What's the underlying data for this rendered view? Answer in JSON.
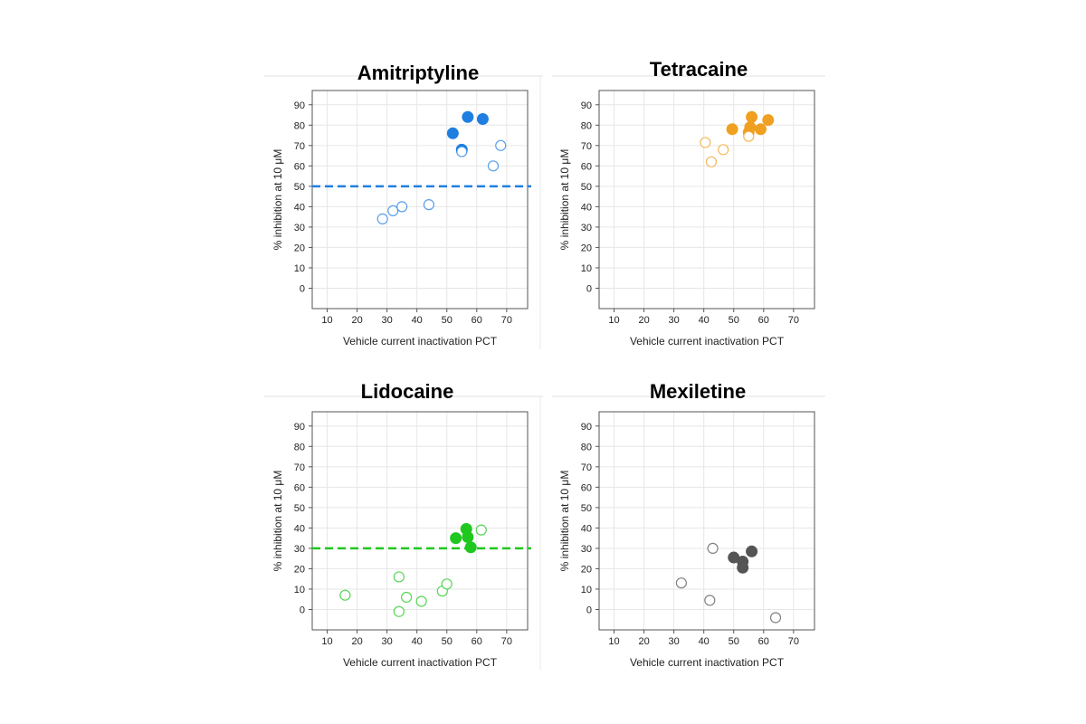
{
  "chart_data": [
    {
      "type": "scatter",
      "title": "Amitriptyline",
      "xlabel": "Vehicle current inactivation PCT",
      "ylabel": "% inhibition at 10 μM",
      "xlim": [
        5,
        77
      ],
      "ylim": [
        -10,
        97
      ],
      "xticks": [
        10,
        20,
        30,
        40,
        50,
        60,
        70
      ],
      "yticks": [
        0,
        10,
        20,
        30,
        40,
        50,
        60,
        70,
        80,
        90
      ],
      "grid": true,
      "color": "#1f7fe0",
      "threshold": 50,
      "series": [
        {
          "style": "filled",
          "x": [
            57,
            62,
            52,
            55
          ],
          "y": [
            84,
            83,
            76,
            68
          ]
        },
        {
          "style": "open",
          "x": [
            55,
            65.5,
            68,
            28.5,
            32,
            35,
            44
          ],
          "y": [
            67,
            60,
            70,
            34,
            38,
            40,
            41
          ]
        }
      ]
    },
    {
      "type": "scatter",
      "title": "Tetracaine",
      "xlabel": "Vehicle current inactivation PCT",
      "ylabel": "% inhibition at 10 μM",
      "xlim": [
        5,
        77
      ],
      "ylim": [
        -10,
        97
      ],
      "xticks": [
        10,
        20,
        30,
        40,
        50,
        60,
        70
      ],
      "yticks": [
        0,
        10,
        20,
        30,
        40,
        50,
        60,
        70,
        80,
        90
      ],
      "grid": true,
      "color": "#f0a020",
      "series": [
        {
          "style": "filled",
          "x": [
            56,
            61.5,
            49.5,
            55.5,
            59,
            55
          ],
          "y": [
            84,
            82.5,
            78,
            79,
            78,
            76.5
          ]
        },
        {
          "style": "open",
          "x": [
            40.5,
            42.5,
            46.5,
            55
          ],
          "y": [
            71.5,
            62,
            68,
            74.5
          ]
        }
      ]
    },
    {
      "type": "scatter",
      "title": "Lidocaine",
      "xlabel": "Vehicle current inactivation PCT",
      "ylabel": "% inhibition at 10 μM",
      "xlim": [
        5,
        77
      ],
      "ylim": [
        -10,
        97
      ],
      "xticks": [
        10,
        20,
        30,
        40,
        50,
        60,
        70
      ],
      "yticks": [
        0,
        10,
        20,
        30,
        40,
        50,
        60,
        70,
        80,
        90
      ],
      "grid": true,
      "color": "#1ec81e",
      "threshold": 30,
      "series": [
        {
          "style": "filled",
          "x": [
            56.5,
            53,
            57,
            58
          ],
          "y": [
            39.5,
            35,
            35.5,
            30.5
          ]
        },
        {
          "style": "open",
          "x": [
            61.5,
            16,
            34,
            36.5,
            34,
            41.5,
            48.5,
            50
          ],
          "y": [
            39,
            7,
            16,
            6,
            -1,
            4,
            9,
            12.5
          ]
        }
      ]
    },
    {
      "type": "scatter",
      "title": "Mexiletine",
      "xlabel": "Vehicle current inactivation PCT",
      "ylabel": "% inhibition at 10 μM",
      "xlim": [
        5,
        77
      ],
      "ylim": [
        -10,
        97
      ],
      "xticks": [
        10,
        20,
        30,
        40,
        50,
        60,
        70
      ],
      "yticks": [
        0,
        10,
        20,
        30,
        40,
        50,
        60,
        70,
        80,
        90
      ],
      "grid": true,
      "color": "#555555",
      "series": [
        {
          "style": "filled",
          "x": [
            50,
            53,
            56,
            53
          ],
          "y": [
            25.5,
            23.5,
            28.5,
            20.5
          ]
        },
        {
          "style": "open",
          "x": [
            43,
            32.5,
            42,
            64
          ],
          "y": [
            30,
            13,
            4.5,
            -4
          ]
        }
      ]
    }
  ]
}
